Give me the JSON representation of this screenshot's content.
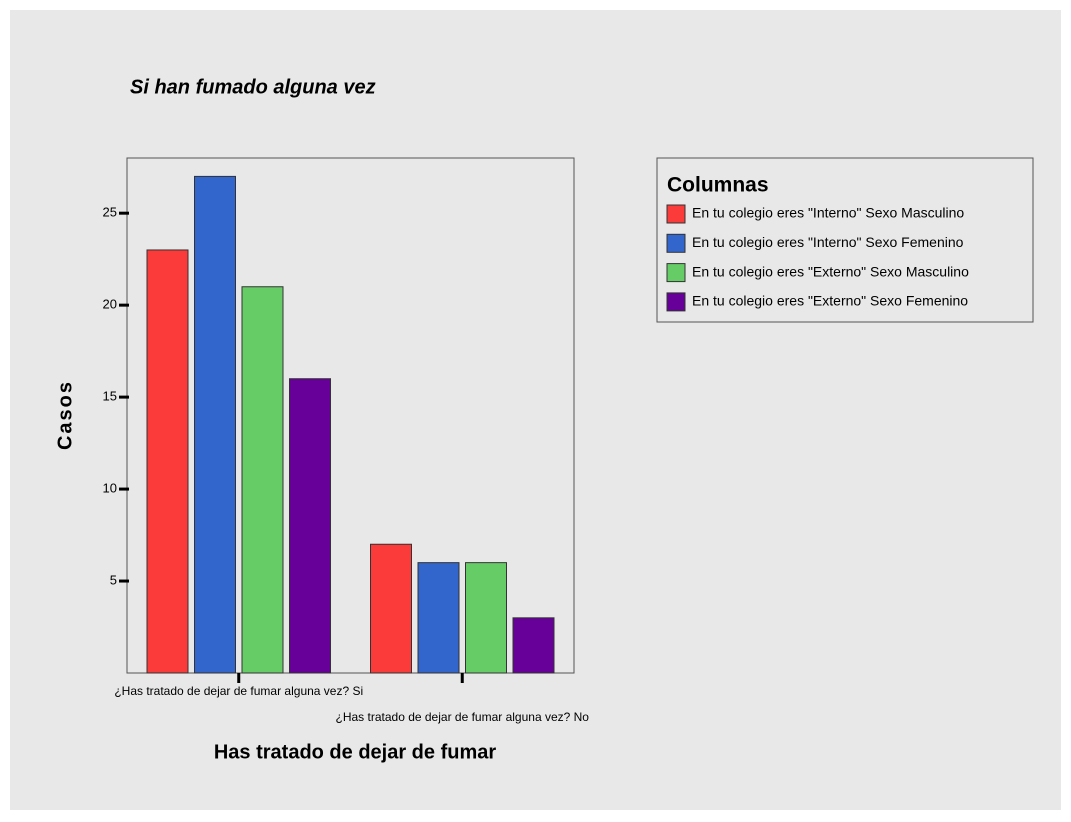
{
  "chart_data": {
    "type": "bar",
    "title": "Si han fumado alguna vez",
    "xlabel": "Has tratado de dejar de fumar",
    "ylabel": "Casos",
    "legend_title": "Columnas",
    "legend": "right",
    "categories": [
      "¿Has tratado de dejar de fumar alguna vez? Si",
      "¿Has tratado de dejar de fumar alguna vez? No"
    ],
    "series": [
      {
        "name": "En tu colegio eres \"Interno\" Sexo Masculino",
        "color": "#fb3a3a",
        "values": [
          23,
          7
        ]
      },
      {
        "name": "En tu colegio eres \"Interno\" Sexo Femenino",
        "color": "#3366cc",
        "values": [
          27,
          6
        ]
      },
      {
        "name": "En tu colegio eres \"Externo\" Sexo Masculino",
        "color": "#66cc66",
        "values": [
          21,
          6
        ]
      },
      {
        "name": "En tu colegio eres \"Externo\" Sexo Femenino",
        "color": "#660099",
        "values": [
          16,
          3
        ]
      }
    ],
    "ylim": [
      0,
      28
    ],
    "yticks": [
      5,
      10,
      15,
      20,
      25
    ]
  }
}
